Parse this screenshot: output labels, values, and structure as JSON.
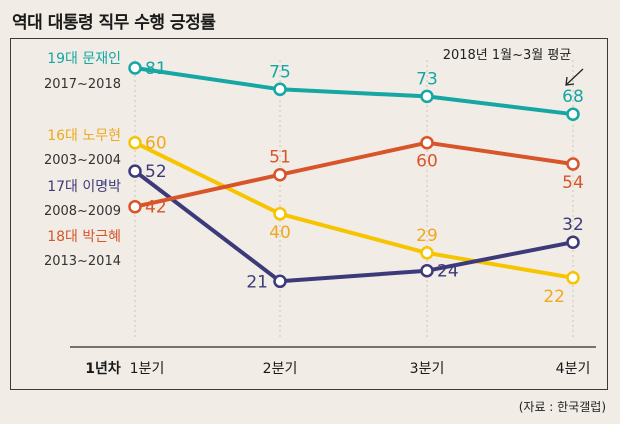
{
  "title": "역대 대통령 직무 수행 긍정률",
  "source": "(자료 : 한국갤럽)",
  "chart_data": {
    "type": "line",
    "title": "역대 대통령 직무 수행 긍정률",
    "categories": [
      "1분기",
      "2분기",
      "3분기",
      "4분기"
    ],
    "first_category_prefix": "1년차",
    "ylim": [
      0,
      90
    ],
    "grid": "vertical-dotted",
    "annotation": "2018년 1월~3월 평균",
    "series": [
      {
        "name": "19대 문재인",
        "years": "2017~2018",
        "color": "#16a6a3",
        "values": [
          81,
          75,
          73,
          68
        ],
        "label_pos": [
          "right",
          "above",
          "above",
          "above"
        ]
      },
      {
        "name": "16대 노무현",
        "years": "2003~2004",
        "color": "#f7c400",
        "values": [
          60,
          40,
          29,
          22
        ],
        "label_text_color": "#f0a81e",
        "label_pos": [
          "right",
          "below",
          "above",
          "below-left"
        ]
      },
      {
        "name": "17대 이명박",
        "years": "2008~2009",
        "color": "#3d3a7a",
        "values": [
          52,
          21,
          24,
          32
        ],
        "label_pos": [
          "right",
          "left",
          "right",
          "above"
        ]
      },
      {
        "name": "18대 박근혜",
        "years": "2013~2014",
        "color": "#d8552a",
        "values": [
          42,
          51,
          60,
          54
        ],
        "label_pos": [
          "right",
          "above",
          "below",
          "below"
        ]
      }
    ]
  }
}
